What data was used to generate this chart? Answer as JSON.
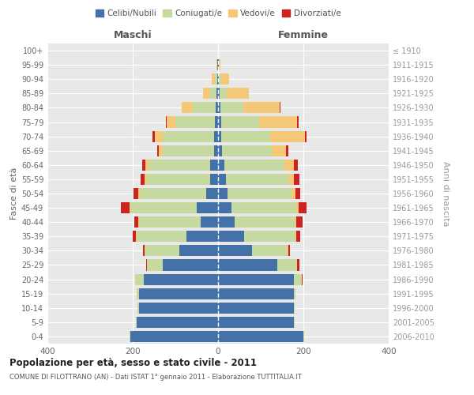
{
  "age_groups": [
    "0-4",
    "5-9",
    "10-14",
    "15-19",
    "20-24",
    "25-29",
    "30-34",
    "35-39",
    "40-44",
    "45-49",
    "50-54",
    "55-59",
    "60-64",
    "65-69",
    "70-74",
    "75-79",
    "80-84",
    "85-89",
    "90-94",
    "95-99",
    "100+"
  ],
  "birth_years": [
    "2006-2010",
    "2001-2005",
    "1996-2000",
    "1991-1995",
    "1986-1990",
    "1981-1985",
    "1976-1980",
    "1971-1975",
    "1966-1970",
    "1961-1965",
    "1956-1960",
    "1951-1955",
    "1946-1950",
    "1941-1945",
    "1936-1940",
    "1931-1935",
    "1926-1930",
    "1921-1925",
    "1916-1920",
    "1911-1915",
    "≤ 1910"
  ],
  "males": {
    "celibi": [
      205,
      190,
      185,
      185,
      175,
      130,
      90,
      75,
      40,
      50,
      28,
      18,
      18,
      10,
      10,
      8,
      5,
      3,
      2,
      1,
      0
    ],
    "coniugati": [
      3,
      3,
      3,
      5,
      18,
      35,
      80,
      115,
      145,
      155,
      155,
      150,
      145,
      120,
      120,
      92,
      55,
      15,
      5,
      1,
      0
    ],
    "vedovi": [
      0,
      0,
      0,
      0,
      1,
      2,
      2,
      2,
      2,
      3,
      4,
      4,
      7,
      8,
      18,
      20,
      25,
      18,
      8,
      2,
      0
    ],
    "divorziati": [
      0,
      0,
      0,
      0,
      1,
      2,
      4,
      8,
      10,
      20,
      12,
      10,
      8,
      4,
      5,
      2,
      1,
      0,
      0,
      0,
      0
    ]
  },
  "females": {
    "nubili": [
      200,
      178,
      178,
      178,
      178,
      138,
      80,
      62,
      38,
      32,
      23,
      18,
      15,
      10,
      8,
      8,
      5,
      3,
      2,
      1,
      0
    ],
    "coniugate": [
      2,
      2,
      2,
      4,
      18,
      45,
      82,
      120,
      142,
      152,
      150,
      148,
      140,
      115,
      115,
      88,
      55,
      18,
      6,
      1,
      0
    ],
    "vedove": [
      0,
      0,
      0,
      0,
      0,
      2,
      2,
      2,
      4,
      5,
      8,
      12,
      22,
      35,
      80,
      90,
      85,
      52,
      18,
      3,
      0
    ],
    "divorziate": [
      0,
      0,
      0,
      0,
      2,
      5,
      5,
      8,
      15,
      18,
      12,
      12,
      10,
      5,
      5,
      2,
      2,
      0,
      0,
      0,
      0
    ]
  },
  "colors": {
    "celibi": "#4472a8",
    "coniugati": "#c5d9a0",
    "vedovi": "#f5c878",
    "divorziati": "#cc2222"
  },
  "title": "Popolazione per età, sesso e stato civile - 2011",
  "subtitle": "COMUNE DI FILOTTRANO (AN) - Dati ISTAT 1° gennaio 2011 - Elaborazione TUTTITALIA.IT",
  "xlabel_left": "Maschi",
  "xlabel_right": "Femmine",
  "ylabel_left": "Fasce di età",
  "ylabel_right": "Anni di nascita",
  "xlim": 400,
  "bg_color": "#efefef",
  "plot_bg": "#e8e8e8",
  "legend_labels": [
    "Celibi/Nubili",
    "Coniugati/e",
    "Vedovi/e",
    "Divorziati/e"
  ]
}
